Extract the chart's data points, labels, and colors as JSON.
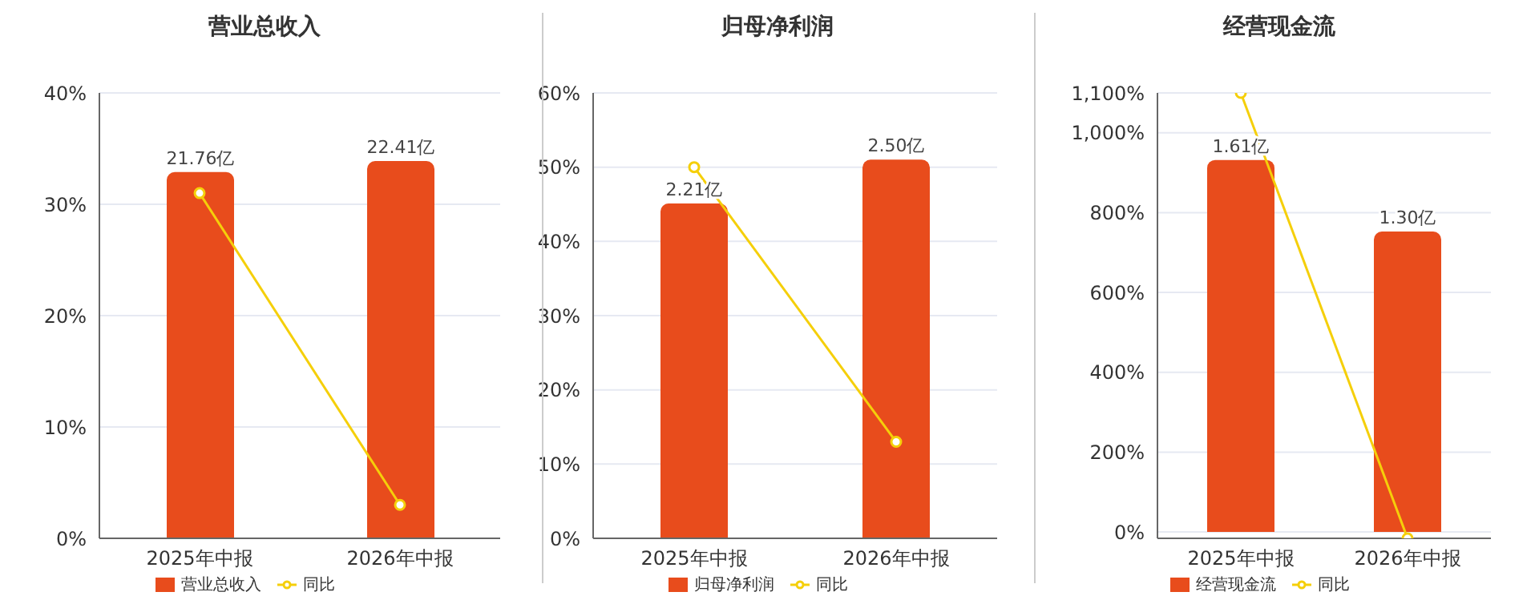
{
  "chart_data": [
    {
      "type": "bar",
      "title": "营业总收入",
      "categories": [
        "2025年中报",
        "2026年中报"
      ],
      "series": [
        {
          "name": "营业总收入",
          "axis": "y2",
          "color": "#e84c1c",
          "values": [
            21.76,
            22.41
          ],
          "value_labels": [
            "21.76亿",
            "22.41亿"
          ]
        },
        {
          "name": "同比",
          "type": "line",
          "color": "#f5cf0a",
          "values": [
            31,
            3
          ]
        }
      ],
      "ylim": [
        0,
        40
      ],
      "yticks": [
        {
          "value": 0,
          "label": "0%"
        },
        {
          "value": 10,
          "label": "10%"
        },
        {
          "value": 20,
          "label": "20%"
        },
        {
          "value": 30,
          "label": "30%"
        },
        {
          "value": 40,
          "label": "40%"
        }
      ],
      "y2lim": [
        0,
        26.46
      ],
      "grid": "y",
      "legend": "bottom",
      "marker": "circle"
    },
    {
      "type": "bar",
      "title": "归母净利润",
      "categories": [
        "2025年中报",
        "2026年中报"
      ],
      "series": [
        {
          "name": "归母净利润",
          "axis": "y2",
          "color": "#e84c1c",
          "values": [
            2.21,
            2.5
          ],
          "value_labels": [
            "2.21亿",
            "2.50亿"
          ]
        },
        {
          "name": "同比",
          "type": "line",
          "color": "#f5cf0a",
          "values": [
            50,
            13
          ]
        }
      ],
      "ylim": [
        0,
        60
      ],
      "yticks": [
        {
          "value": 0,
          "label": "0%"
        },
        {
          "value": 10,
          "label": "10%"
        },
        {
          "value": 20,
          "label": "20%"
        },
        {
          "value": 30,
          "label": "30%"
        },
        {
          "value": 40,
          "label": "40%"
        },
        {
          "value": 50,
          "label": "50%"
        },
        {
          "value": 60,
          "label": "60%"
        }
      ],
      "y2lim": [
        0,
        2.94
      ],
      "grid": "y",
      "legend": "bottom",
      "marker": "circle"
    },
    {
      "type": "bar",
      "title": "经营现金流",
      "categories": [
        "2025年中报",
        "2026年中报"
      ],
      "series": [
        {
          "name": "经营现金流",
          "axis": "y2",
          "color": "#e84c1c",
          "values": [
            1.61,
            1.3
          ],
          "value_labels": [
            "1.61亿",
            "1.30亿"
          ]
        },
        {
          "name": "同比",
          "type": "line",
          "color": "#f5cf0a",
          "values": [
            1100,
            -16
          ]
        }
      ],
      "ylim": [
        -16,
        1100
      ],
      "yticks": [
        {
          "value": 0,
          "label": "0%"
        },
        {
          "value": 200,
          "label": "200%"
        },
        {
          "value": 400,
          "label": "400%"
        },
        {
          "value": 600,
          "label": "600%"
        },
        {
          "value": 800,
          "label": "800%"
        },
        {
          "value": 1000,
          "label": "1,000%"
        },
        {
          "value": 1100,
          "label": "1,100%"
        }
      ],
      "y2lim": [
        -0.028,
        1.9
      ],
      "grid": "y",
      "legend": "bottom",
      "marker": "circle"
    }
  ]
}
